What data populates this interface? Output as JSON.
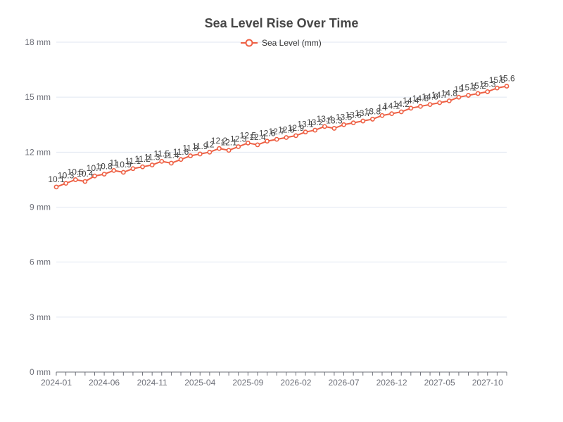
{
  "chart_data": {
    "type": "line",
    "title": "Sea Level Rise Over Time",
    "xlabel": "",
    "ylabel": "",
    "y_unit": " mm",
    "ylim": [
      0,
      18
    ],
    "y_ticks": [
      0,
      3,
      6,
      9,
      12,
      15,
      18
    ],
    "x_tick_labels": [
      "2024-01",
      "2024-06",
      "2024-11",
      "2025-04",
      "2025-09",
      "2026-02",
      "2026-07",
      "2026-12",
      "2027-05",
      "2027-10"
    ],
    "x": [
      "2024-01",
      "2024-02",
      "2024-03",
      "2024-04",
      "2024-05",
      "2024-06",
      "2024-07",
      "2024-08",
      "2024-09",
      "2024-10",
      "2024-11",
      "2024-12",
      "2025-01",
      "2025-02",
      "2025-03",
      "2025-04",
      "2025-05",
      "2025-06",
      "2025-07",
      "2025-08",
      "2025-09",
      "2025-10",
      "2025-11",
      "2025-12",
      "2026-01",
      "2026-02",
      "2026-03",
      "2026-04",
      "2026-05",
      "2026-06",
      "2026-07",
      "2026-08",
      "2026-09",
      "2026-10",
      "2026-11",
      "2026-12",
      "2027-01",
      "2027-02",
      "2027-03",
      "2027-04",
      "2027-05",
      "2027-06",
      "2027-07",
      "2027-08",
      "2027-09",
      "2027-10",
      "2027-11",
      "2027-12"
    ],
    "grid": true,
    "legend_position": "top-center",
    "series": [
      {
        "name": "Sea Level (mm)",
        "color": "#ee6044",
        "values": [
          10.1,
          10.3,
          10.5,
          10.4,
          10.7,
          10.8,
          11.0,
          10.9,
          11.1,
          11.2,
          11.3,
          11.5,
          11.4,
          11.6,
          11.8,
          11.9,
          12.0,
          12.2,
          12.1,
          12.3,
          12.5,
          12.4,
          12.6,
          12.7,
          12.8,
          12.9,
          13.1,
          13.2,
          13.4,
          13.3,
          13.5,
          13.6,
          13.7,
          13.8,
          14.0,
          14.1,
          14.2,
          14.4,
          14.5,
          14.6,
          14.7,
          14.8,
          15.0,
          15.1,
          15.2,
          15.3,
          15.5,
          15.6
        ]
      }
    ]
  }
}
